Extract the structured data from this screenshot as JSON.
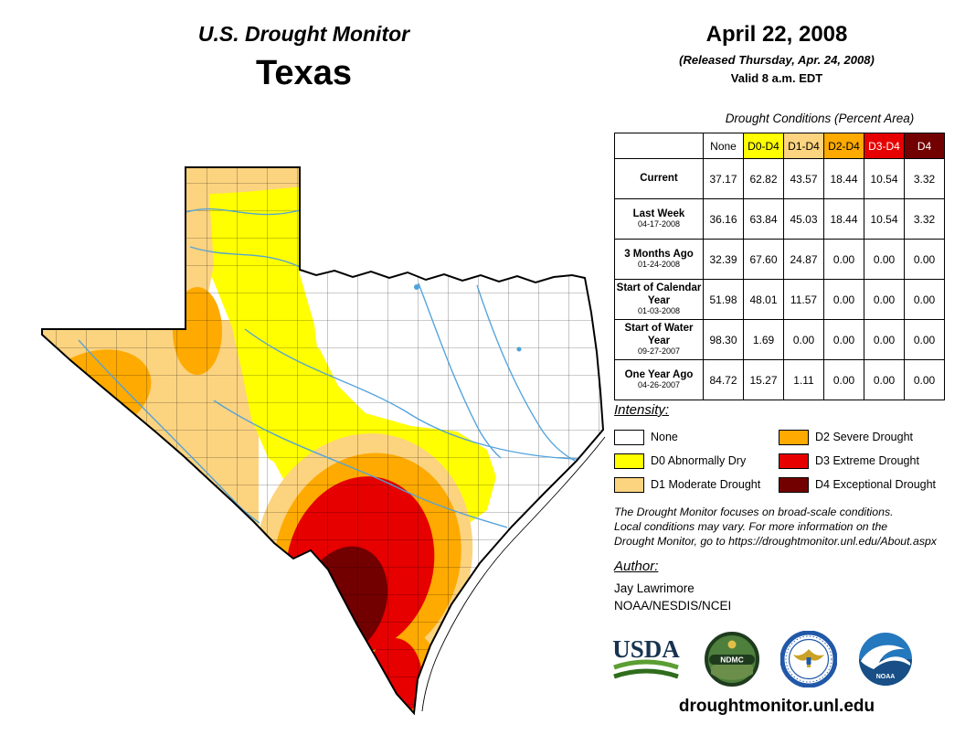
{
  "header": {
    "program_title": "U.S. Drought Monitor",
    "region_title": "Texas"
  },
  "release": {
    "map_date": "April 22, 2008",
    "released_line": "(Released Thursday, Apr. 24, 2008)",
    "valid_line": "Valid 8 a.m. EDT"
  },
  "table": {
    "title": "Drought Conditions (Percent Area)",
    "columns": [
      {
        "label": "None",
        "bg": "#FFFFFF",
        "fg": "#000000"
      },
      {
        "label": "D0-D4",
        "bg": "#FFFF00",
        "fg": "#000000"
      },
      {
        "label": "D1-D4",
        "bg": "#FCD37F",
        "fg": "#000000"
      },
      {
        "label": "D2-D4",
        "bg": "#FFAA00",
        "fg": "#000000"
      },
      {
        "label": "D3-D4",
        "bg": "#E60000",
        "fg": "#FFFFFF"
      },
      {
        "label": "D4",
        "bg": "#730000",
        "fg": "#FFFFFF"
      }
    ],
    "rows": [
      {
        "label": "Current",
        "sublabel": "",
        "values": [
          "37.17",
          "62.82",
          "43.57",
          "18.44",
          "10.54",
          "3.32"
        ]
      },
      {
        "label": "Last Week",
        "sublabel": "04-17-2008",
        "values": [
          "36.16",
          "63.84",
          "45.03",
          "18.44",
          "10.54",
          "3.32"
        ]
      },
      {
        "label": "3 Months Ago",
        "sublabel": "01-24-2008",
        "values": [
          "32.39",
          "67.60",
          "24.87",
          "0.00",
          "0.00",
          "0.00"
        ]
      },
      {
        "label": "Start of Calendar Year",
        "sublabel": "01-03-2008",
        "values": [
          "51.98",
          "48.01",
          "11.57",
          "0.00",
          "0.00",
          "0.00"
        ]
      },
      {
        "label": "Start of Water Year",
        "sublabel": "09-27-2007",
        "values": [
          "98.30",
          "1.69",
          "0.00",
          "0.00",
          "0.00",
          "0.00"
        ]
      },
      {
        "label": "One Year Ago",
        "sublabel": "04-26-2007",
        "values": [
          "84.72",
          "15.27",
          "1.11",
          "0.00",
          "0.00",
          "0.00"
        ]
      }
    ]
  },
  "legend": {
    "title": "Intensity:",
    "items": [
      {
        "label": "None",
        "color": "#FFFFFF"
      },
      {
        "label": "D0 Abnormally Dry",
        "color": "#FFFF00"
      },
      {
        "label": "D1 Moderate Drought",
        "color": "#FCD37F"
      },
      {
        "label": "D2 Severe Drought",
        "color": "#FFAA00"
      },
      {
        "label": "D3 Extreme Drought",
        "color": "#E60000"
      },
      {
        "label": "D4 Exceptional Drought",
        "color": "#730000"
      }
    ]
  },
  "disclaimer": {
    "line1": "The Drought Monitor focuses on broad-scale conditions.",
    "line2": "Local conditions may vary. For more information on the",
    "line3": "Drought Monitor, go to https://droughtmonitor.unl.edu/About.aspx"
  },
  "author": {
    "heading": "Author:",
    "name": "Jay Lawrimore",
    "agency": "NOAA/NESDIS/NCEI"
  },
  "logos": {
    "usda_wordmark": "USDA",
    "ndmc_label": "NDMC",
    "noaa_label": "NOAA"
  },
  "footer": {
    "url": "droughtmonitor.unl.edu"
  },
  "map": {
    "colors": {
      "none": "#FFFFFF",
      "d0": "#FFFF00",
      "d1": "#FCD37F",
      "d2": "#FFAA00",
      "d3": "#E60000",
      "d4": "#730000"
    },
    "river_color": "#4FA1DB"
  }
}
